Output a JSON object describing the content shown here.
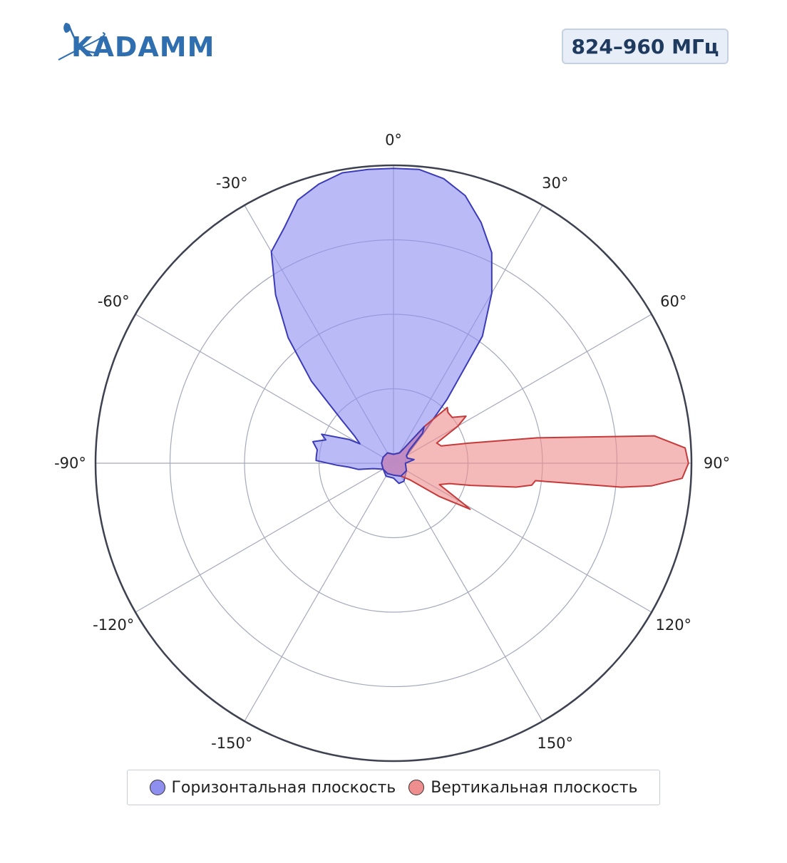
{
  "header": {
    "logo_text": "KADAMM",
    "frequency_badge": "824–960 МГц"
  },
  "colors": {
    "horizontal_line": "#3b3bb8",
    "horizontal_fill": "#8f8ff0",
    "vertical_line": "#c53a3a",
    "vertical_fill": "#ee8e8e",
    "grid": "#a6a9bb",
    "outer_ring": "#3d4150",
    "logo": "#2f6fb0",
    "badge_text": "#1e3a5f"
  },
  "chart_data": {
    "type": "polar",
    "angular_ticks": [
      "0°",
      "30°",
      "60°",
      "90°",
      "120°",
      "150°",
      "-150°",
      "-120°",
      "-90°",
      "-60°",
      "-30°"
    ],
    "angular_tick_values": [
      0,
      30,
      60,
      90,
      120,
      150,
      210,
      240,
      270,
      300,
      330
    ],
    "radial_range": [
      0,
      1
    ],
    "radial_gridlines": [
      0.25,
      0.5,
      0.75,
      1.0
    ],
    "legend_position": "bottom",
    "series": [
      {
        "name": "Горизонтальная плоскость",
        "color": "#8f8ff0",
        "points": [
          [
            0,
            0.99
          ],
          [
            5,
            0.99
          ],
          [
            10,
            0.97
          ],
          [
            15,
            0.93
          ],
          [
            20,
            0.86
          ],
          [
            25,
            0.78
          ],
          [
            30,
            0.66
          ],
          [
            35,
            0.52
          ],
          [
            40,
            0.28
          ],
          [
            45,
            0.14
          ],
          [
            60,
            0.05
          ],
          [
            90,
            0.04
          ],
          [
            120,
            0.05
          ],
          [
            150,
            0.07
          ],
          [
            165,
            0.07
          ],
          [
            180,
            0.05
          ],
          [
            210,
            0.05
          ],
          [
            240,
            0.04
          ],
          [
            255,
            0.07
          ],
          [
            260,
            0.12
          ],
          [
            265,
            0.15
          ],
          [
            268,
            0.19
          ],
          [
            272,
            0.26
          ],
          [
            275,
            0.26
          ],
          [
            280,
            0.26
          ],
          [
            285,
            0.28
          ],
          [
            289,
            0.24
          ],
          [
            292,
            0.26
          ],
          [
            298,
            0.17
          ],
          [
            300,
            0.13
          ],
          [
            305,
            0.16
          ],
          [
            310,
            0.23
          ],
          [
            315,
            0.39
          ],
          [
            320,
            0.55
          ],
          [
            325,
            0.69
          ],
          [
            330,
            0.82
          ],
          [
            335,
            0.87
          ],
          [
            340,
            0.94
          ],
          [
            345,
            0.97
          ],
          [
            350,
            0.99
          ],
          [
            355,
            0.99
          ],
          [
            360,
            0.99
          ]
        ]
      },
      {
        "name": "Вертикальная плоскость",
        "color": "#ee8e8e",
        "points": [
          [
            0,
            0.03
          ],
          [
            30,
            0.04
          ],
          [
            35,
            0.06
          ],
          [
            40,
            0.16
          ],
          [
            44,
            0.26
          ],
          [
            47,
            0.25
          ],
          [
            52,
            0.25
          ],
          [
            57,
            0.29
          ],
          [
            60,
            0.25
          ],
          [
            65,
            0.16
          ],
          [
            70,
            0.17
          ],
          [
            75,
            0.26
          ],
          [
            80,
            0.49
          ],
          [
            82,
            0.63
          ],
          [
            84,
            0.88
          ],
          [
            87,
            0.98
          ],
          [
            90,
            0.99
          ],
          [
            93,
            0.97
          ],
          [
            95,
            0.87
          ],
          [
            96,
            0.77
          ],
          [
            97,
            0.48
          ],
          [
            99,
            0.47
          ],
          [
            101,
            0.42
          ],
          [
            106,
            0.27
          ],
          [
            110,
            0.2
          ],
          [
            115,
            0.17
          ],
          [
            120,
            0.27
          ],
          [
            121,
            0.3
          ],
          [
            126,
            0.19
          ],
          [
            135,
            0.08
          ],
          [
            150,
            0.05
          ],
          [
            180,
            0.04
          ],
          [
            210,
            0.04
          ],
          [
            240,
            0.04
          ],
          [
            270,
            0.04
          ],
          [
            300,
            0.04
          ],
          [
            330,
            0.04
          ],
          [
            360,
            0.03
          ]
        ]
      },
      {
        "name": "",
        "role": "overlap",
        "color": "#bb88c6",
        "points": [
          [
            0,
            0.03
          ],
          [
            30,
            0.04
          ],
          [
            35,
            0.06
          ],
          [
            40,
            0.16
          ],
          [
            44,
            0.14
          ],
          [
            50,
            0.07
          ],
          [
            60,
            0.05
          ],
          [
            70,
            0.05
          ],
          [
            80,
            0.07
          ],
          [
            90,
            0.04
          ],
          [
            120,
            0.05
          ],
          [
            150,
            0.05
          ],
          [
            180,
            0.04
          ],
          [
            210,
            0.04
          ],
          [
            240,
            0.04
          ],
          [
            270,
            0.04
          ],
          [
            300,
            0.04
          ],
          [
            330,
            0.04
          ],
          [
            360,
            0.03
          ]
        ]
      }
    ]
  },
  "legend": {
    "horizontal_label": "Горизонтальная плоскость",
    "vertical_label": "Вертикальная плоскость"
  }
}
